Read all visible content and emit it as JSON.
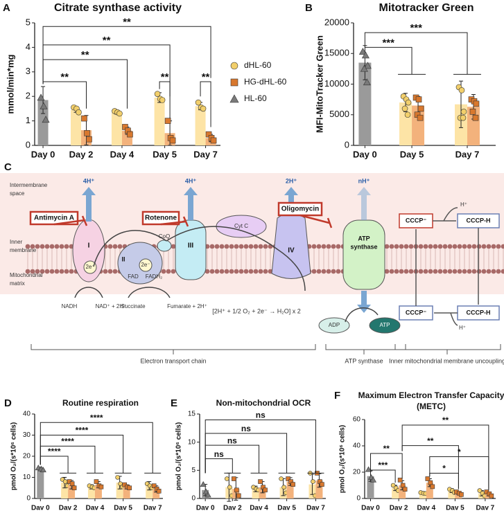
{
  "chart_data": [
    {
      "type": "bar",
      "panel": "A",
      "title": "Citrate synthase activity",
      "ylabel": "mmol/min*mg",
      "categories": [
        "Day 0",
        "Day 2",
        "Day 4",
        "Day 5",
        "Day 7"
      ],
      "ylim": [
        0,
        5
      ],
      "yticks": [
        0,
        1,
        2,
        3,
        4,
        5
      ],
      "legend": "right",
      "series": [
        {
          "name": "dHL-60",
          "color": "#fde4a6",
          "marker": "circle",
          "marker_color": "#f2cf6b",
          "values": [
            null,
            1.45,
            1.35,
            1.95,
            1.6
          ],
          "errors": [
            null,
            0.1,
            0.08,
            0.2,
            0.15
          ],
          "points": [
            null,
            [
              1.55,
              1.5,
              1.35
            ],
            [
              1.4,
              1.35,
              1.3
            ],
            [
              2.1,
              1.9,
              1.85
            ],
            [
              1.75,
              1.55,
              1.5
            ]
          ]
        },
        {
          "name": "HG-dHL-60",
          "color": "#f3b27c",
          "marker": "square",
          "marker_color": "#d8782e",
          "values": [
            null,
            0.62,
            0.6,
            0.5,
            0.3
          ],
          "errors": [
            null,
            0.6,
            0.15,
            0.5,
            0.15
          ],
          "points": [
            null,
            [
              1.1,
              0.5,
              0.25
            ],
            [
              0.75,
              0.6,
              0.45
            ],
            [
              1.0,
              0.3,
              0.2
            ],
            [
              0.45,
              0.3,
              0.2
            ]
          ]
        },
        {
          "name": "HL-60",
          "color": "#9a9a9a",
          "marker": "triangle",
          "marker_color": "#7a7a7a",
          "values": [
            1.85,
            null,
            null,
            null,
            null
          ],
          "errors": [
            0.55,
            null,
            null,
            null,
            null
          ],
          "points": [
            [
              1.95,
              1.6,
              1.05
            ],
            null,
            null,
            null,
            null
          ]
        }
      ],
      "annotations": [
        "**",
        "**",
        "**",
        "**",
        "**",
        "**"
      ]
    },
    {
      "type": "bar",
      "panel": "B",
      "title": "Mitotracker Green",
      "ylabel": "MFI-MitoTracker Green",
      "categories": [
        "Day 0",
        "Day 5",
        "Day 7"
      ],
      "ylim": [
        0,
        20000
      ],
      "yticks": [
        0,
        5000,
        10000,
        15000,
        20000
      ],
      "series": [
        {
          "color": "#fde4a6",
          "marker": "circle",
          "marker_color": "#f2cf6b",
          "values": [
            null,
            7000,
            6700
          ],
          "errors": [
            null,
            1500,
            3800
          ],
          "points": [
            null,
            [
              8000,
              7500,
              7000,
              6000,
              5000
            ],
            [
              9500,
              9000,
              5500,
              4500,
              4500
            ]
          ]
        },
        {
          "color": "#f3b27c",
          "marker": "square",
          "marker_color": "#d8782e",
          "values": [
            null,
            6500,
            6300
          ],
          "errors": [
            null,
            1500,
            2000
          ],
          "points": [
            null,
            [
              7800,
              7500,
              6000,
              5000,
              4500
            ],
            [
              7500,
              7200,
              6800,
              5500,
              4500
            ]
          ]
        },
        {
          "color": "#9a9a9a",
          "marker": "triangle",
          "marker_color": "#7a7a7a",
          "values": [
            13500,
            null,
            null
          ],
          "errors": [
            2800,
            null,
            null
          ],
          "points": [
            [
              15300,
              14700,
              13000,
              12500,
              10300
            ],
            null,
            null
          ]
        }
      ],
      "annotations": [
        "***",
        "***"
      ]
    },
    {
      "type": "bar",
      "panel": "D",
      "title": "Routine respiration",
      "ylabel": "pmol O₂/(s*10⁶ cells)",
      "categories": [
        "Dav 0",
        "Dav 2",
        "Dav 4",
        "Dav 5",
        "Dav 7"
      ],
      "ylim": [
        0,
        40
      ],
      "yticks": [
        0,
        10,
        20,
        30,
        40
      ],
      "series": [
        {
          "color": "#fde4a6",
          "marker": "circle",
          "marker_color": "#f2cf6b",
          "values": [
            null,
            7.5,
            5.5,
            7.5,
            6
          ],
          "errors": [
            null,
            2.5,
            1,
            3,
            2
          ],
          "points": [
            null,
            [
              9,
              8,
              6
            ],
            [
              6,
              5.5,
              5
            ],
            [
              10,
              7,
              5.5
            ],
            [
              7,
              6,
              5
            ]
          ]
        },
        {
          "color": "#f3b27c",
          "marker": "square",
          "marker_color": "#d8782e",
          "values": [
            null,
            6.5,
            6.5,
            5.5,
            4.5
          ],
          "errors": [
            null,
            2,
            1.5,
            1,
            1.5
          ],
          "points": [
            null,
            [
              8,
              7,
              5
            ],
            [
              8,
              6,
              5.5
            ],
            [
              6.5,
              5.5,
              5
            ],
            [
              6,
              4.5,
              3.5
            ]
          ]
        },
        {
          "color": "#9a9a9a",
          "marker": "triangle",
          "marker_color": "#7a7a7a",
          "values": [
            14,
            null,
            null,
            null,
            null
          ],
          "errors": [
            0.8,
            null,
            null,
            null,
            null
          ],
          "points": [
            [
              14.5,
              14,
              13.5
            ],
            null,
            null,
            null,
            null
          ]
        }
      ],
      "annotations": [
        "****",
        "****",
        "****",
        "****"
      ]
    },
    {
      "type": "bar",
      "panel": "E",
      "title": "Non-mitochondrial OCR",
      "ylabel": "pmol O₂/(s*10⁶ cells)",
      "categories": [
        "Dav 0",
        "Dav 2",
        "Dav 4",
        "Dav 5",
        "Dav 7"
      ],
      "ylim": [
        0,
        15
      ],
      "yticks": [
        0,
        5,
        10,
        15
      ],
      "series": [
        {
          "color": "#fde4a6",
          "marker": "circle",
          "marker_color": "#f2cf6b",
          "values": [
            null,
            2,
            1.7,
            2,
            2.5
          ],
          "errors": [
            null,
            2.5,
            0.5,
            1.5,
            1.8
          ],
          "points": [
            null,
            [
              3.5,
              2,
              0.5
            ],
            [
              2,
              1.7,
              1.5
            ],
            [
              3.5,
              2,
              1
            ],
            [
              4.5,
              3,
              0.5
            ]
          ]
        },
        {
          "color": "#f3b27c",
          "marker": "square",
          "marker_color": "#d8782e",
          "values": [
            null,
            1.7,
            2,
            3,
            3.2
          ],
          "errors": [
            null,
            2,
            1,
            0.7,
            1.2
          ],
          "points": [
            null,
            [
              3.5,
              1.5,
              0.5
            ],
            [
              3,
              2,
              1.5
            ],
            [
              3.5,
              3,
              2.5
            ],
            [
              4.5,
              3,
              2.5
            ]
          ]
        },
        {
          "color": "#9a9a9a",
          "marker": "triangle",
          "marker_color": "#7a7a7a",
          "values": [
            1.5,
            null,
            null,
            null,
            null
          ],
          "errors": [
            1,
            null,
            null,
            null,
            null
          ],
          "points": [
            [
              2.5,
              1.2,
              0.6
            ],
            null,
            null,
            null,
            null
          ]
        }
      ],
      "annotations": [
        "ns",
        "ns",
        "ns",
        "ns"
      ]
    },
    {
      "type": "bar",
      "panel": "F",
      "title": [
        "Maximum Electron Transfer Capacity",
        "(METC)"
      ],
      "ylabel": "pmol O₂/(s*10⁶ cells)",
      "categories": [
        "Dav 0",
        "Dav 2",
        "Dav 4",
        "Dav 5",
        "Dav 7"
      ],
      "ylim": [
        0,
        60
      ],
      "yticks": [
        0,
        20,
        40,
        60
      ],
      "series": [
        {
          "color": "#fde4a6",
          "marker": "circle",
          "marker_color": "#f2cf6b",
          "values": [
            null,
            8,
            4,
            6,
            4
          ],
          "errors": [
            null,
            2,
            0.5,
            1.5,
            2
          ],
          "points": [
            null,
            [
              10,
              8,
              6
            ],
            [
              4.5,
              4,
              3.8
            ],
            [
              7,
              6,
              4.5
            ],
            [
              6,
              4,
              2
            ]
          ]
        },
        {
          "color": "#f3b27c",
          "marker": "square",
          "marker_color": "#d8782e",
          "values": [
            null,
            10,
            12,
            4,
            3.5
          ],
          "errors": [
            null,
            3.5,
            3,
            1,
            1.5
          ],
          "points": [
            null,
            [
              14,
              10,
              7
            ],
            [
              15,
              12,
              9
            ],
            [
              5,
              4,
              3
            ],
            [
              5,
              3.5,
              2
            ]
          ]
        },
        {
          "color": "#9a9a9a",
          "marker": "triangle",
          "marker_color": "#7a7a7a",
          "values": [
            17,
            null,
            null,
            null,
            null
          ],
          "errors": [
            4,
            null,
            null,
            null,
            null
          ],
          "points": [
            [
              22,
              16,
              14
            ],
            null,
            null,
            null,
            null
          ]
        }
      ],
      "annotations": [
        "***",
        "**",
        "**",
        "**",
        "*",
        "*"
      ]
    }
  ],
  "diagram": {
    "labels": [
      "C",
      "Intermembrane",
      "space",
      "Inner",
      "membrane",
      "Mitochondrial",
      "matrix",
      "Antimycin A",
      "Rotenone",
      "Oligomycin",
      "4H⁺",
      "4H⁺",
      "2H⁺",
      "nH⁺",
      "I",
      "II",
      "III",
      "IV",
      "CoQ",
      "Cyt C",
      "ATP",
      "synthase",
      "2e⁻",
      "2e⁻",
      "FAD",
      "FADH₂",
      "NADH",
      "NAD⁺ + 2H⁺",
      "Succinate",
      "Fumarate + 2H⁺",
      "[2H⁺ + 1/2 O₂ + 2e⁻ → H₂O] x 2",
      "ADP",
      "ATP",
      "CCCP⁻",
      "CCCP-H",
      "H⁺",
      "CCCP⁻",
      "CCCP-H",
      "H⁺",
      "Electron transport chain",
      "ATP synthase",
      "Inner mitochondrial membrane uncoupling"
    ]
  }
}
